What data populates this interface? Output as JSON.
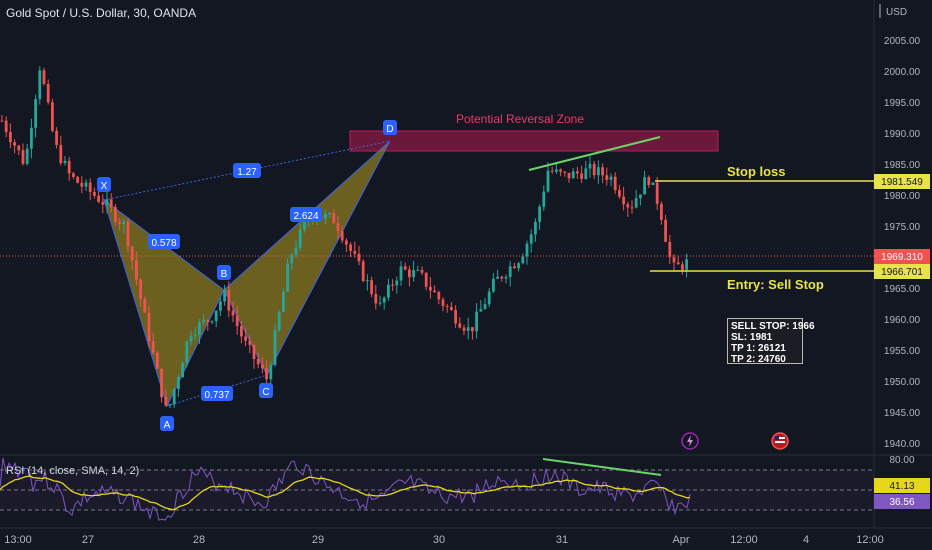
{
  "header": {
    "symbol_title": "Gold Spot / U.S. Dollar, 30, OANDA",
    "currency": "USD"
  },
  "colors": {
    "background": "#131722",
    "up_candle": "#26a69a",
    "down_candle": "#ef5350",
    "pattern_fill": "#8a7a1f",
    "pattern_line": "#3b63e6",
    "prz_fill": "#7a1a3e",
    "prz_text": "#f23669",
    "level_line": "#e9e34a",
    "divergence_line": "#6bd36b",
    "rsi_line": "#7e57c2",
    "rsi_ma": "#e6d71a"
  },
  "annotations": {
    "prz_label": "Potential Reversal Zone",
    "stop_loss_label": "Stop loss",
    "entry_label": "Entry: Sell Stop",
    "point_labels": [
      "X",
      "A",
      "B",
      "C",
      "D"
    ],
    "ratio_labels": [
      "1.27",
      "0.578",
      "2.624",
      "0.737"
    ],
    "trade_box": [
      "SELL STOP: 1966",
      "SL: 1981",
      "TP 1: 26121",
      "TP 2: 24760"
    ]
  },
  "price_tags": {
    "stop_loss": "1981.549",
    "current": "1969.310",
    "entry": "1966.701"
  },
  "rsi": {
    "title": "RSI (14, close, SMA, 14, 2)",
    "value_ma": "41.13",
    "value_rsi": "36.56",
    "ticks": [
      "80.00"
    ]
  },
  "chart_data": {
    "type": "candlestick",
    "title": "Gold Spot / U.S. Dollar, 30, OANDA",
    "y_unit": "USD",
    "ylim": [
      1936,
      2011
    ],
    "y_ticks": [
      1940,
      1945,
      1950,
      1955,
      1960,
      1965,
      1970,
      1975,
      1980,
      1985,
      1990,
      1995,
      2000,
      2005
    ],
    "y_tick_labels": [
      "1940.00",
      "1945.00",
      "1950.00",
      "1955.00",
      "1960.00",
      "1965.00",
      "1970.00",
      "1975.00",
      "1980.00",
      "1985.00",
      "1990.00",
      "1995.00",
      "2000.00",
      "2005.00"
    ],
    "x_tick_labels": [
      "13:00",
      "27",
      "28",
      "29",
      "30",
      "31",
      "Apr",
      "12:00",
      "4",
      "12:00"
    ],
    "harmonic_pattern": {
      "X": 1978.8,
      "A": 1944.5,
      "B": 1964.0,
      "C": 1950.3,
      "D": 1988.0,
      "ratios": {
        "XD": 1.27,
        "XB": 0.578,
        "BD": 2.624,
        "AC": 0.737
      }
    },
    "prz": [
      1987.5,
      1990.5
    ],
    "levels": {
      "stop_loss": 1981.549,
      "entry": 1966.701,
      "current": 1969.31
    },
    "grid": false
  }
}
